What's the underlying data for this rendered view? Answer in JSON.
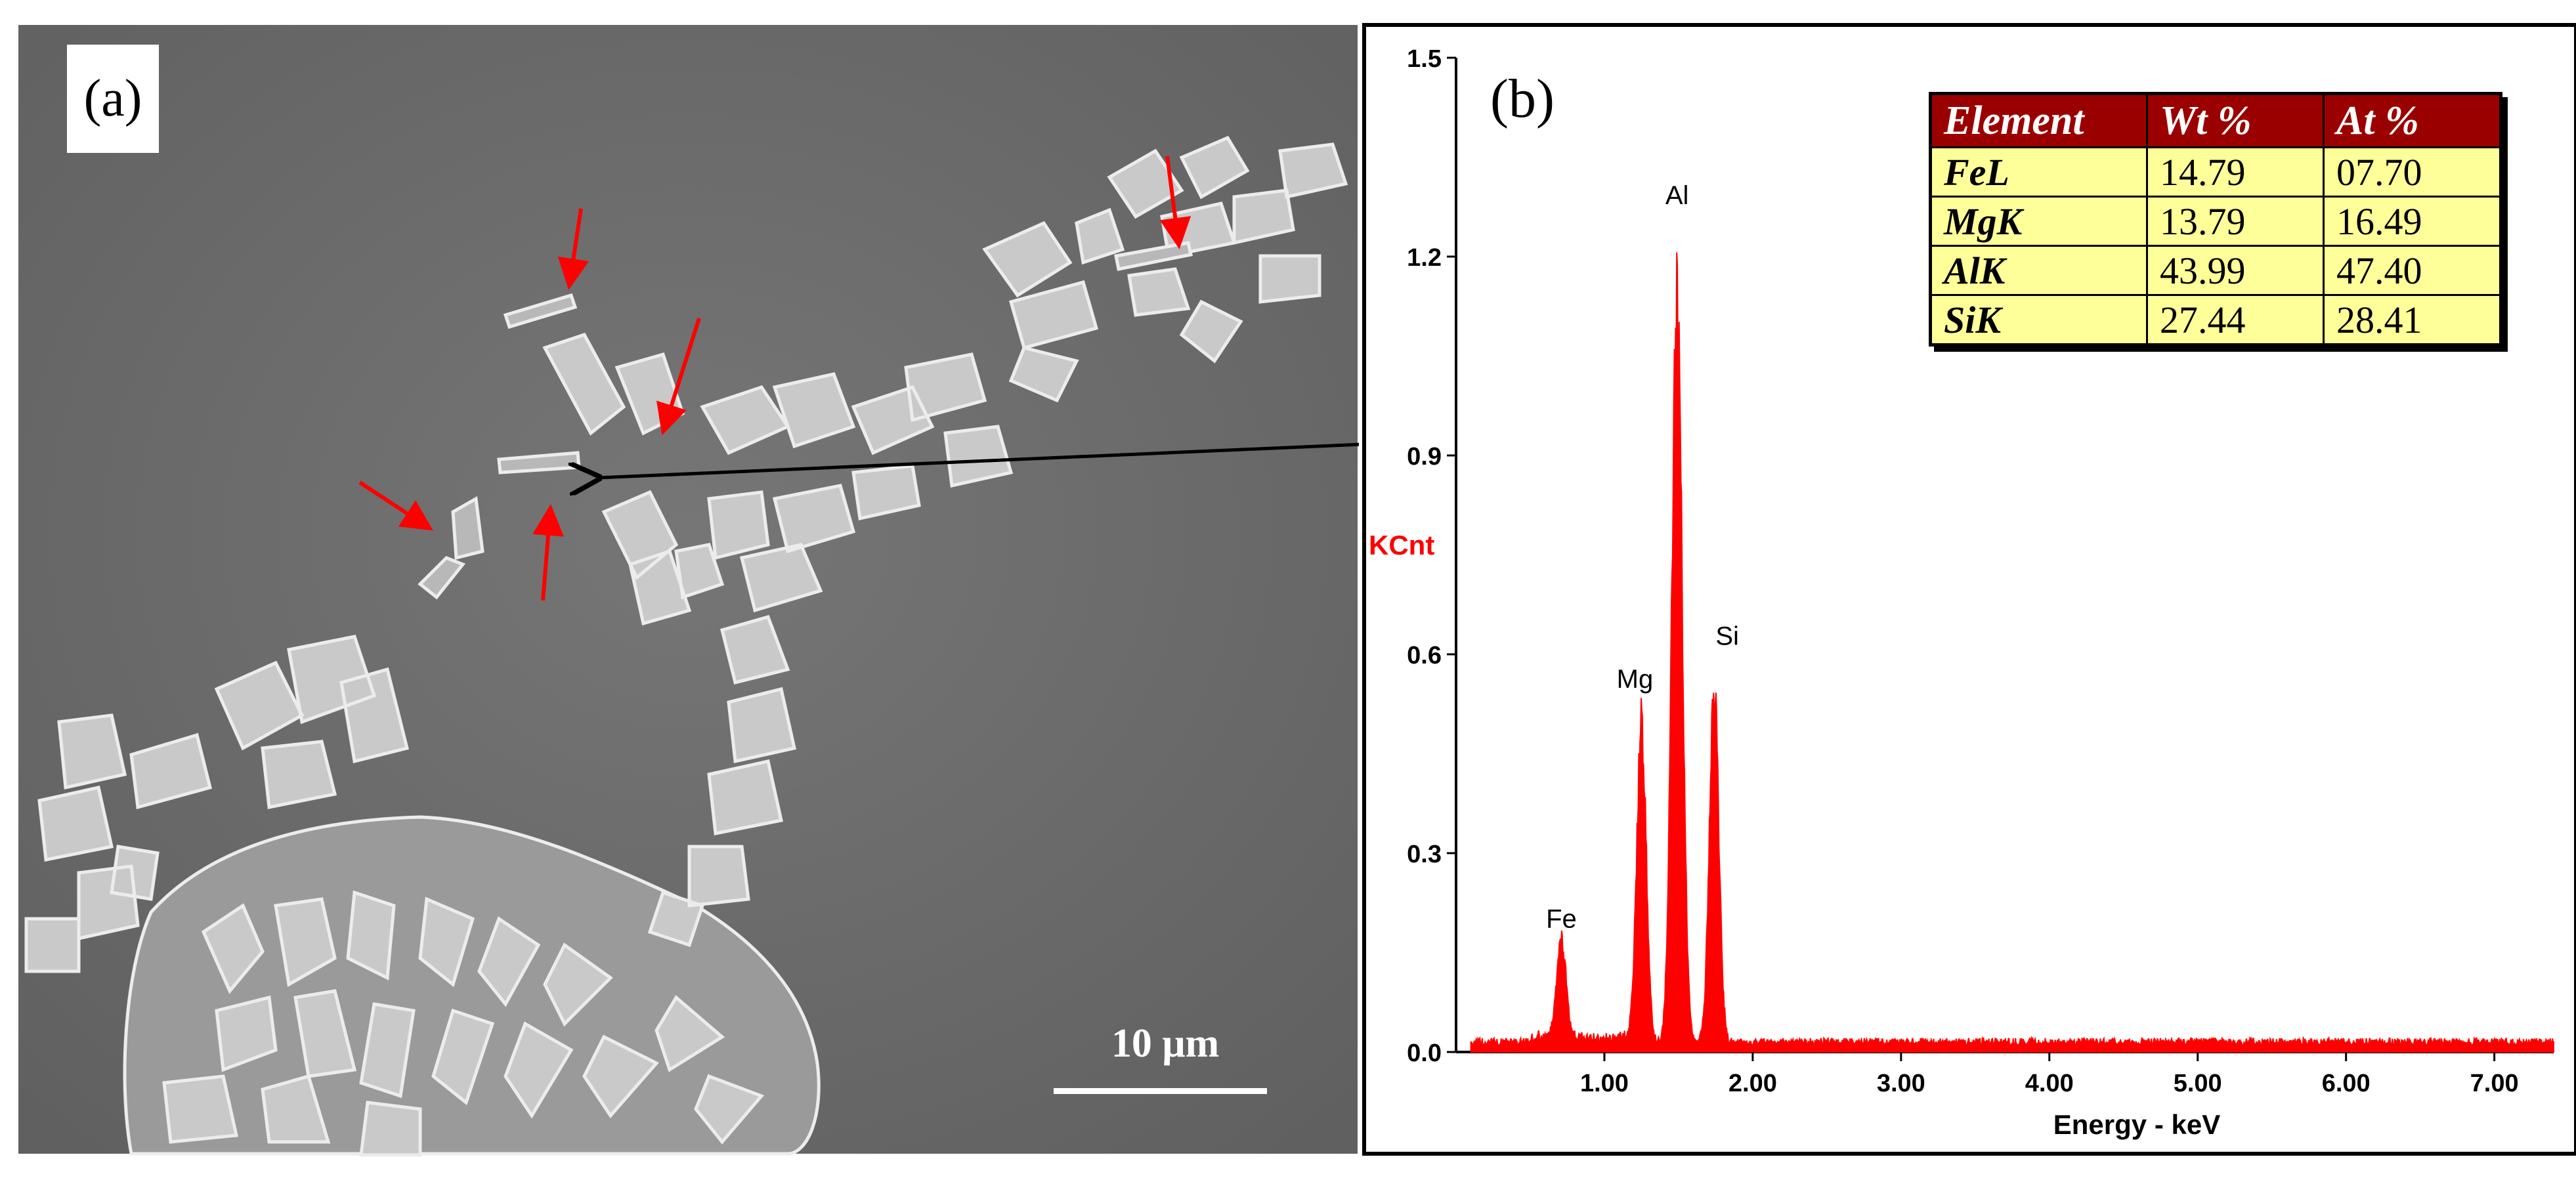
{
  "panel_a": {
    "label": "(a)",
    "scale_bar_text": "10 μm"
  },
  "panel_b": {
    "label": "(b)",
    "table": {
      "headers": [
        "Element",
        "Wt %",
        "At %"
      ],
      "rows": [
        {
          "element": "FeL",
          "wt": "14.79",
          "at": "07.70"
        },
        {
          "element": "MgK",
          "wt": "13.79",
          "at": "16.49"
        },
        {
          "element": "AlK",
          "wt": "43.99",
          "at": "47.40"
        },
        {
          "element": "SiK",
          "wt": "27.44",
          "at": "28.41"
        }
      ]
    }
  },
  "colors": {
    "spectrum": "#ff0000",
    "ylabel": "#ff0000",
    "table_header_bg": "#9b0000",
    "table_cell_bg": "#ffff99",
    "sem_background": "#6e6e6e",
    "arrows": "#ff0000"
  },
  "chart_data": {
    "type": "area",
    "xlabel": "Energy - keV",
    "ylabel": "KCnt",
    "xlim": [
      0.0,
      7.4
    ],
    "ylim": [
      0.0,
      1.5
    ],
    "x_ticks": [
      "1.00",
      "2.00",
      "3.00",
      "4.00",
      "5.00",
      "6.00",
      "7.00"
    ],
    "y_ticks": [
      "0.0",
      "0.3",
      "0.6",
      "0.9",
      "1.2",
      "1.5"
    ],
    "peaks": [
      {
        "label": "Fe",
        "energy": 0.71,
        "height": 0.16
      },
      {
        "label": "Mg",
        "energy": 1.25,
        "height": 0.52
      },
      {
        "label": "Al",
        "energy": 1.49,
        "height": 1.21
      },
      {
        "label": "Si",
        "energy": 1.74,
        "height": 0.57
      }
    ],
    "baseline": 0.015
  }
}
